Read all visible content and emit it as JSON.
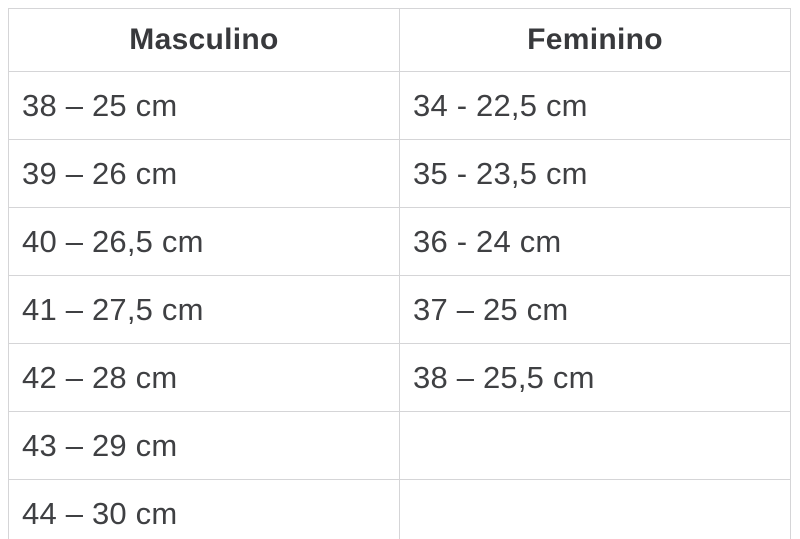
{
  "table": {
    "headers": [
      "Masculino",
      "Feminino"
    ],
    "rows": [
      [
        "38 – 25 cm",
        "34 - 22,5 cm"
      ],
      [
        "39 – 26 cm",
        "35 - 23,5 cm"
      ],
      [
        "40 – 26,5 cm",
        "36 - 24 cm"
      ],
      [
        "41 – 27,5 cm",
        "37 – 25 cm"
      ],
      [
        "42 – 28 cm",
        "38 – 25,5 cm"
      ],
      [
        "43 – 29 cm",
        ""
      ],
      [
        "44 – 30 cm",
        ""
      ]
    ],
    "colors": {
      "background": "#ffffff",
      "border": "#d5d5d7",
      "header_text": "#38393c",
      "cell_text": "#3f4043"
    },
    "unit": "cm"
  }
}
